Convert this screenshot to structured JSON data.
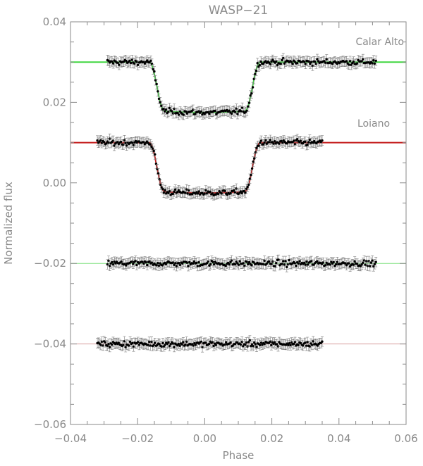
{
  "chart_data": {
    "type": "scatter",
    "title": "WASP−21",
    "xlabel": "Phase",
    "ylabel": "Normalized flux",
    "xlim": [
      -0.04,
      0.06
    ],
    "ylim": [
      -0.06,
      0.04
    ],
    "xticks": [
      -0.04,
      -0.02,
      0.0,
      0.02,
      0.04,
      0.06
    ],
    "xtick_labels": [
      "−0.04",
      "−0.02",
      "0.00",
      "0.02",
      "0.04",
      "0.06"
    ],
    "yticks": [
      -0.06,
      -0.04,
      -0.02,
      0.0,
      0.02,
      0.04
    ],
    "ytick_labels": [
      "−0.06",
      "−0.04",
      "−0.02",
      "0.00",
      "0.02",
      "0.04"
    ],
    "grid": false,
    "annotations": [
      "Calar Alto",
      "Loiano"
    ],
    "transit_model": {
      "depth": 0.0125,
      "half_duration": 0.0165,
      "ingress_duration": 0.0045
    },
    "series": [
      {
        "label": "Calar Alto",
        "kind": "lightcurve",
        "baseline": 0.03,
        "x_range": [
          -0.029,
          0.051
        ],
        "n_points": 230,
        "error": 0.0012,
        "scatter": 0.0006
      },
      {
        "label": "Loiano",
        "kind": "lightcurve",
        "baseline": 0.01,
        "x_range": [
          -0.032,
          0.035
        ],
        "n_points": 200,
        "error": 0.0012,
        "scatter": 0.0006
      },
      {
        "kind": "residuals",
        "baseline": -0.02,
        "x_range": [
          -0.029,
          0.051
        ],
        "n_points": 230,
        "error": 0.0012,
        "scatter": 0.0006
      },
      {
        "kind": "residuals",
        "baseline": -0.04,
        "x_range": [
          -0.032,
          0.035
        ],
        "n_points": 200,
        "error": 0.0012,
        "scatter": 0.0006
      }
    ],
    "model_lines": [
      {
        "baseline": 0.03,
        "color": "#3fd63f",
        "transit": true
      },
      {
        "baseline": 0.01,
        "color": "#c41a1a",
        "transit": true
      },
      {
        "baseline": -0.02,
        "color": "#7fe07f",
        "transit": false
      },
      {
        "baseline": -0.04,
        "color": "#d9a0a0",
        "transit": false
      }
    ]
  }
}
